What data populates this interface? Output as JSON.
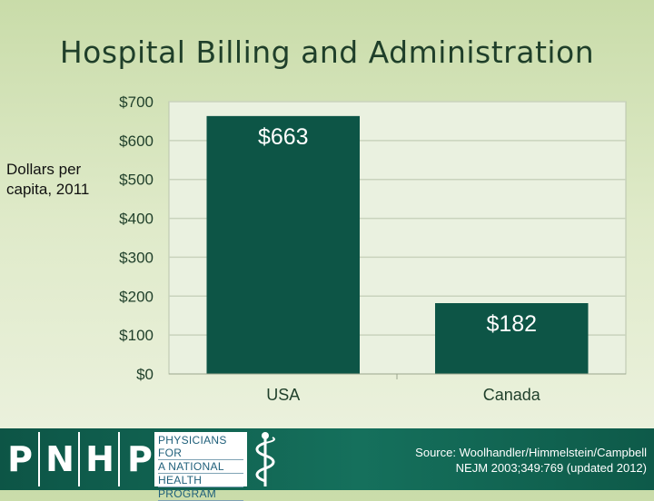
{
  "slide": {
    "title": "Hospital Billing and Administration",
    "ylabel_line1": "Dollars per",
    "ylabel_line2": "capita, 2011",
    "source_line1": "Source: Woolhandler/Himmelstein/Campbell",
    "source_line2": "NEJM 2003;349:769 (updated 2012)"
  },
  "logo": {
    "letters": [
      "P",
      "N",
      "H",
      "P"
    ],
    "lines": [
      "PHYSICIANS FOR",
      "A NATIONAL",
      "HEALTH",
      "PROGRAM"
    ],
    "icon": "caduceus-icon"
  },
  "colors": {
    "bar": "#0d5546",
    "plot_bg": "#eaf1e0",
    "grid": "#c9d3bd",
    "axis_text": "#1f3f2a"
  },
  "chart_data": {
    "type": "bar",
    "categories": [
      "USA",
      "Canada"
    ],
    "values": [
      663,
      182
    ],
    "data_labels": [
      "$663",
      "$182"
    ],
    "ylim": [
      0,
      700
    ],
    "yticks": [
      0,
      100,
      200,
      300,
      400,
      500,
      600,
      700
    ],
    "ytick_labels": [
      "$0",
      "$100",
      "$200",
      "$300",
      "$400",
      "$500",
      "$600",
      "$700"
    ],
    "ylabel": "Dollars per capita, 2011",
    "grid": true
  }
}
